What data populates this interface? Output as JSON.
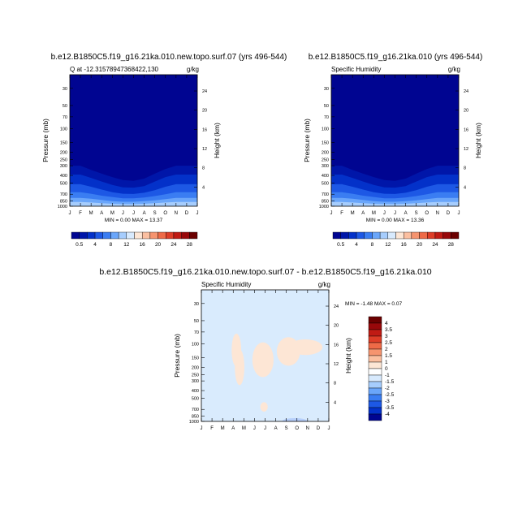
{
  "figure": {
    "bottom_title": "b.e12.B1850C5.f19_g16.21ka.010.new.topo.surf.07 - b.e12.B1850C5.f19_g16.21ka.010"
  },
  "chart_data": [
    {
      "type": "contour",
      "title": "b.e12.B1850C5.f19_g16.21ka.010.new.topo.surf.07 (yrs 496-544)",
      "left_string": "Q at -12.31578947368422,130",
      "right_string": "g/kg",
      "ylabel": "Pressure (mb)",
      "ylabel_right": "Height (km)",
      "x_ticks": [
        "J",
        "F",
        "M",
        "A",
        "M",
        "J",
        "J",
        "A",
        "S",
        "O",
        "N",
        "D",
        "J"
      ],
      "y_ticks": [
        "30",
        "50",
        "70",
        "100",
        "150",
        "200",
        "250",
        "300",
        "400",
        "500",
        "700",
        "850",
        "1000"
      ],
      "y_ticks_right": [
        "24",
        "20",
        "16",
        "12",
        "8",
        "4"
      ],
      "ylim_mb": [
        1000,
        20
      ],
      "y_scale": "log",
      "min_max_text": "MIN =   0.00 MAX =  13.37",
      "min": 0.0,
      "max": 13.37,
      "levels": [
        "0.5",
        "4",
        "8",
        "12",
        "16",
        "20",
        "24",
        "28"
      ],
      "bands": [
        {
          "p_top": 1000,
          "color": "#000591"
        },
        {
          "p_bot": [
            300,
            300,
            340,
            380,
            420,
            460,
            470,
            440,
            380,
            330,
            300,
            300,
            300
          ],
          "color": "#0016a9"
        },
        {
          "p_bot": [
            390,
            390,
            430,
            480,
            530,
            570,
            575,
            550,
            480,
            420,
            390,
            390,
            390
          ],
          "color": "#0331c9"
        },
        {
          "p_bot": [
            520,
            520,
            560,
            610,
            660,
            690,
            695,
            670,
            620,
            560,
            520,
            520,
            520
          ],
          "color": "#1d58e5"
        },
        {
          "p_bot": [
            660,
            660,
            690,
            730,
            760,
            790,
            790,
            770,
            740,
            700,
            660,
            660,
            660
          ],
          "color": "#3a7df2"
        },
        {
          "p_bot": [
            780,
            780,
            800,
            830,
            860,
            875,
            875,
            860,
            840,
            810,
            780,
            780,
            780
          ],
          "color": "#6aa6fa"
        },
        {
          "p_bot": [
            880,
            880,
            895,
            915,
            930,
            940,
            940,
            930,
            915,
            895,
            880,
            880,
            880
          ],
          "color": "#a6cdfd"
        }
      ]
    },
    {
      "type": "contour",
      "title": "b.e12.B1850C5.f19_g16.21ka.010 (yrs 496-544)",
      "left_string": "Specific Humidity",
      "right_string": "g/kg",
      "ylabel": "Pressure (mb)",
      "ylabel_right": "Height (km)",
      "x_ticks": [
        "J",
        "F",
        "M",
        "A",
        "M",
        "J",
        "J",
        "A",
        "S",
        "O",
        "N",
        "D",
        "J"
      ],
      "y_ticks": [
        "30",
        "50",
        "70",
        "100",
        "150",
        "200",
        "250",
        "300",
        "400",
        "500",
        "700",
        "850",
        "1000"
      ],
      "y_ticks_right": [
        "24",
        "20",
        "16",
        "12",
        "8",
        "4"
      ],
      "ylim_mb": [
        1000,
        20
      ],
      "y_scale": "log",
      "min_max_text": "MIN =   0.00 MAX =  13.36",
      "min": 0.0,
      "max": 13.36,
      "levels": [
        "0.5",
        "4",
        "8",
        "12",
        "16",
        "20",
        "24",
        "28"
      ],
      "bands": [
        {
          "p_top": 1000,
          "color": "#000591"
        },
        {
          "p_bot": [
            300,
            300,
            340,
            380,
            420,
            460,
            470,
            440,
            380,
            330,
            300,
            300,
            300
          ],
          "color": "#0016a9"
        },
        {
          "p_bot": [
            390,
            390,
            430,
            480,
            530,
            570,
            575,
            550,
            480,
            420,
            390,
            390,
            390
          ],
          "color": "#0331c9"
        },
        {
          "p_bot": [
            520,
            520,
            560,
            610,
            660,
            690,
            695,
            670,
            620,
            560,
            520,
            520,
            520
          ],
          "color": "#1d58e5"
        },
        {
          "p_bot": [
            660,
            660,
            690,
            730,
            760,
            790,
            790,
            770,
            740,
            700,
            660,
            660,
            660
          ],
          "color": "#3a7df2"
        },
        {
          "p_bot": [
            780,
            780,
            800,
            830,
            860,
            875,
            875,
            860,
            840,
            810,
            780,
            780,
            780
          ],
          "color": "#6aa6fa"
        },
        {
          "p_bot": [
            880,
            880,
            895,
            915,
            930,
            940,
            940,
            930,
            915,
            895,
            880,
            880,
            880
          ],
          "color": "#a6cdfd"
        }
      ]
    },
    {
      "type": "contour",
      "title": "",
      "left_string": "Specific Humidity",
      "right_string": "g/kg",
      "ylabel": "Pressure (mb)",
      "ylabel_right": "Height (km)",
      "x_ticks": [
        "J",
        "F",
        "M",
        "A",
        "M",
        "J",
        "J",
        "A",
        "S",
        "O",
        "N",
        "D",
        "J"
      ],
      "y_ticks": [
        "30",
        "50",
        "70",
        "100",
        "150",
        "200",
        "250",
        "300",
        "400",
        "500",
        "700",
        "850",
        "1000"
      ],
      "y_ticks_right": [
        "24",
        "20",
        "16",
        "12",
        "8",
        "4"
      ],
      "ylim_mb": [
        1000,
        20
      ],
      "y_scale": "log",
      "min_max_text": "MIN =   -1.48 MAX =   0.07",
      "min": -1.48,
      "max": 0.07,
      "levels": [
        "4",
        "3.5",
        "3",
        "2.5",
        "2",
        "1.5",
        "1",
        "0",
        "-1",
        "-1.5",
        "-2",
        "-2.5",
        "-3",
        "-3.5",
        "-4"
      ],
      "background_color": "#d9ebfd",
      "anomaly_color": "#fde6d5",
      "negative_color": "#b6cffb",
      "anomalies": [
        {
          "month": 3.3,
          "p": 120,
          "dmonth": 0.45,
          "dp": 50
        },
        {
          "month": 3.6,
          "p": 200,
          "dmonth": 0.45,
          "dp": 90
        },
        {
          "month": 5.8,
          "p": 160,
          "dmonth": 1.0,
          "dp": 70
        },
        {
          "month": 8.2,
          "p": 125,
          "dmonth": 1.1,
          "dp": 45
        },
        {
          "month": 9.8,
          "p": 110,
          "dmonth": 1.6,
          "dp": 20
        },
        {
          "month": 5.9,
          "p": 650,
          "dmonth": 0.35,
          "dp": 60
        }
      ],
      "negative_regions": [
        {
          "month": 8.8,
          "p": 1000,
          "dmonth": 1.2,
          "dp": 60
        }
      ]
    }
  ],
  "colorbar": {
    "colors": [
      "#000591",
      "#0016a9",
      "#0331c9",
      "#1d58e5",
      "#3a7df2",
      "#6aa6fa",
      "#a6cdfd",
      "#d8eafd",
      "#fde6d5",
      "#fbbfa0",
      "#f6946f",
      "#ee6a47",
      "#dd3d27",
      "#c01b14",
      "#98080a",
      "#6b0000"
    ],
    "labels": [
      "0.5",
      "4",
      "8",
      "12",
      "16",
      "20",
      "24",
      "28"
    ]
  },
  "diff_colorbar": {
    "colors": [
      "#000591",
      "#0331c9",
      "#1d58e5",
      "#3a7df2",
      "#6aa6fa",
      "#a6cdfd",
      "#d8eafd",
      "#ffffff",
      "#fde6d5",
      "#fbbfa0",
      "#f6946f",
      "#ee6a47",
      "#dd3d27",
      "#c01b14",
      "#98080a",
      "#6b0000"
    ],
    "labels": [
      "4",
      "3.5",
      "3",
      "2.5",
      "2",
      "1.5",
      "1",
      "0",
      "-1",
      "-1.5",
      "-2",
      "-2.5",
      "-3",
      "-3.5",
      "-4"
    ]
  }
}
